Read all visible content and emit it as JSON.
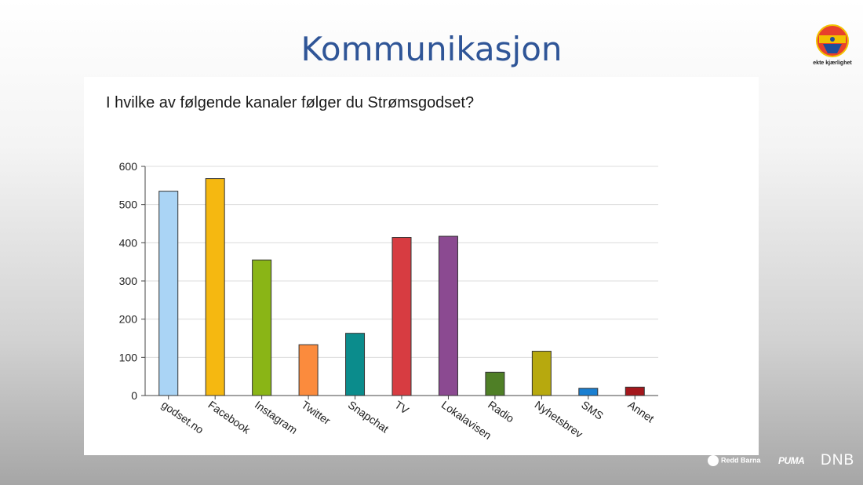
{
  "slide": {
    "title": "Kommunikasjon",
    "logo": {
      "icon": "stromsgodset-crest-icon",
      "slogan": "ekte kjærlighet"
    },
    "sponsors": [
      "Redd Barna",
      "PUMA",
      "DNB"
    ]
  },
  "chart_data": {
    "type": "bar",
    "title": "I hvilke av følgende kanaler følger du Strømsgodset?",
    "xlabel": "",
    "ylabel": "",
    "ylim": [
      0,
      600
    ],
    "yticks": [
      "0",
      "100",
      "200",
      "300",
      "400",
      "500",
      "600"
    ],
    "grid": true,
    "legend": "none",
    "categories": [
      "godset.no",
      "Facebook",
      "Instagram",
      "Twitter",
      "Snapchat",
      "TV",
      "Lokalavisen",
      "Radio",
      "Nyhetsbrev",
      "SMS",
      "Annet"
    ],
    "values": [
      535,
      568,
      355,
      133,
      163,
      414,
      417,
      61,
      116,
      19,
      22
    ],
    "colors": [
      "#aad4f5",
      "#f5b811",
      "#8ab516",
      "#fb8b3d",
      "#0b8c8c",
      "#d73c41",
      "#8b4a91",
      "#4f7f26",
      "#b7a90e",
      "#1a7fd1",
      "#a4171c"
    ]
  }
}
